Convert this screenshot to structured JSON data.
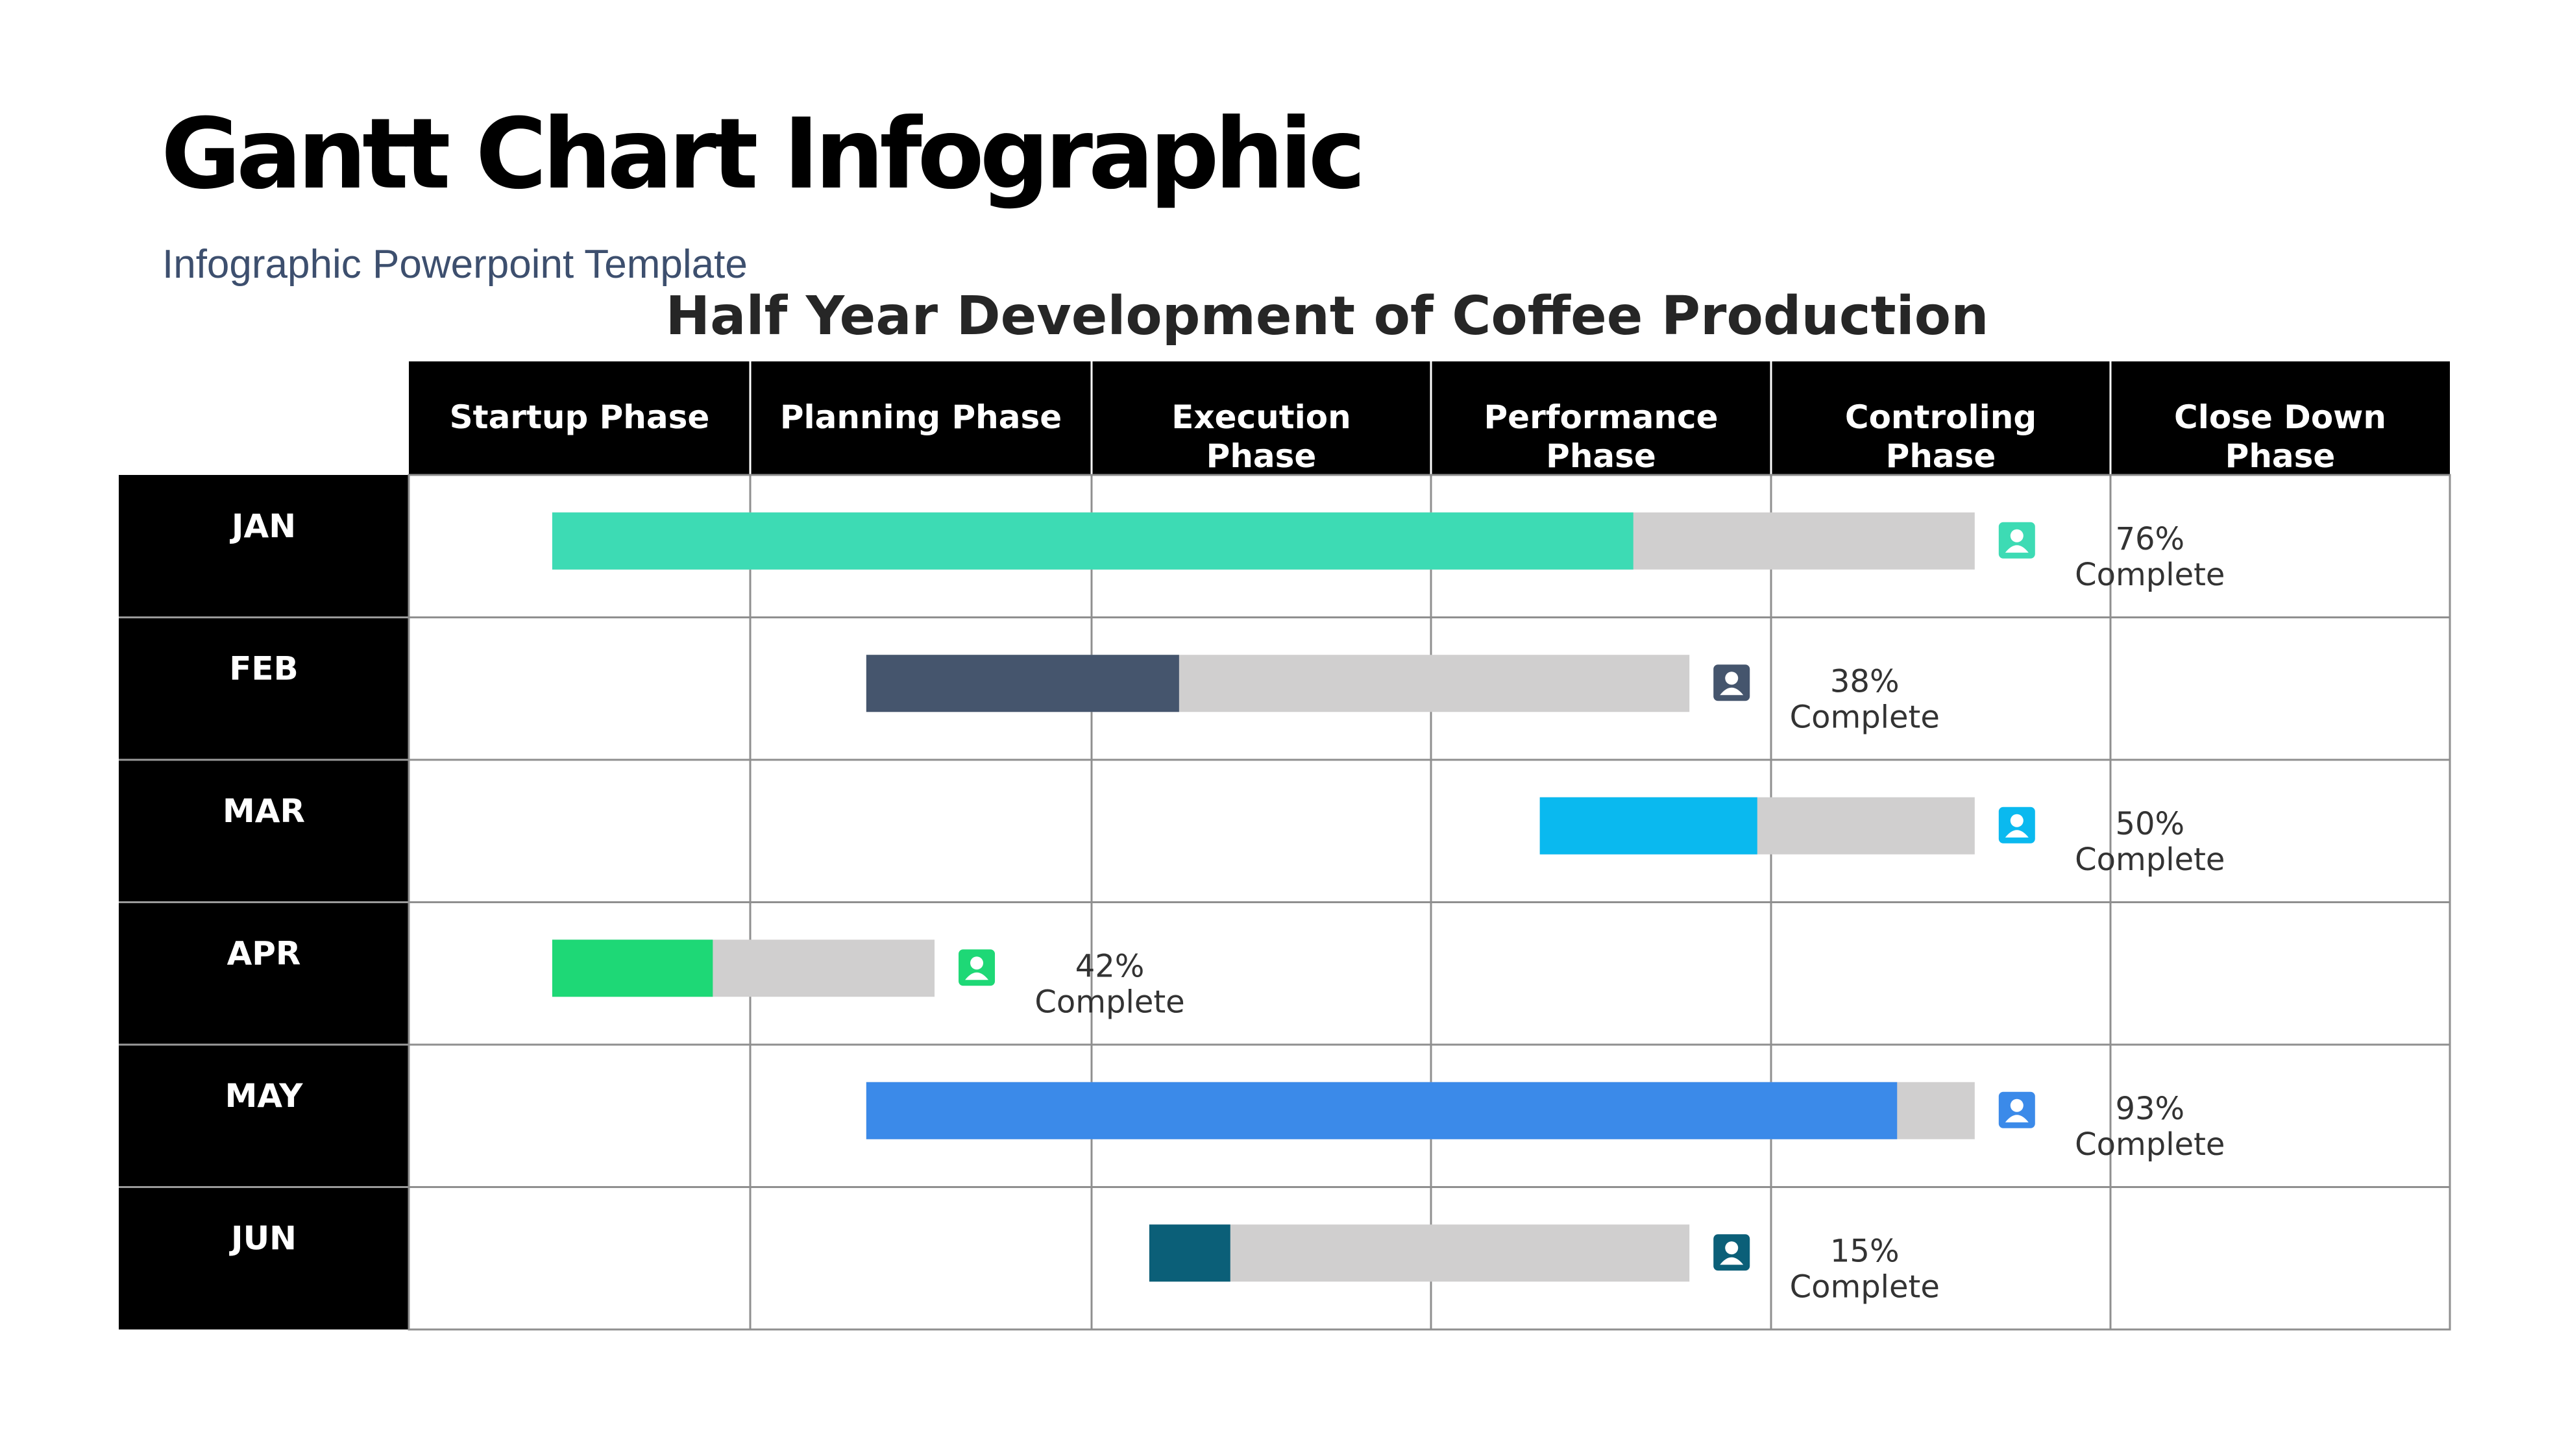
{
  "header": {
    "title": "Gantt Chart Infographic",
    "subtitle": "Infographic Powerpoint Template"
  },
  "chart_data": {
    "type": "gantt",
    "title": "Half Year Development of Coffee Production",
    "phases": [
      [
        "Startup Phase"
      ],
      [
        "Planning Phase"
      ],
      [
        "Execution",
        "Phase"
      ],
      [
        "Performance",
        "Phase"
      ],
      [
        "Controling",
        "Phase"
      ],
      [
        "Close Down",
        "Phase"
      ]
    ],
    "complete_label": "Complete",
    "track_color": "#d0cfcf",
    "rows": [
      {
        "month": "JAN",
        "start": 0.42,
        "end": 4.6,
        "progress": 76,
        "percent_label": "76%",
        "color": "#3ddbb4",
        "icon": "user-icon"
      },
      {
        "month": "FEB",
        "start": 1.34,
        "end": 3.76,
        "progress": 38,
        "percent_label": "38%",
        "color": "#45556d",
        "icon": "user-icon"
      },
      {
        "month": "MAR",
        "start": 3.32,
        "end": 4.6,
        "progress": 50,
        "percent_label": "50%",
        "color": "#0ab9ef",
        "icon": "user-icon"
      },
      {
        "month": "APR",
        "start": 0.42,
        "end": 1.54,
        "progress": 42,
        "percent_label": "42%",
        "color": "#1ed876",
        "icon": "user-icon"
      },
      {
        "month": "MAY",
        "start": 1.34,
        "end": 4.6,
        "progress": 93,
        "percent_label": "93%",
        "color": "#3b8ae9",
        "icon": "user-icon"
      },
      {
        "month": "JUN",
        "start": 2.17,
        "end": 3.76,
        "progress": 15,
        "percent_label": "15%",
        "color": "#0b5f78",
        "icon": "user-icon"
      }
    ]
  }
}
